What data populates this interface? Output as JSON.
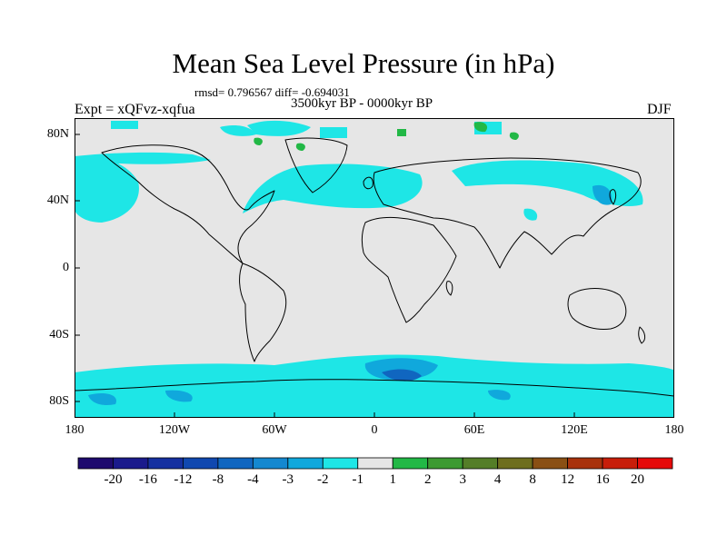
{
  "title": "Mean Sea Level Pressure (in hPa)",
  "stats": "rmsd= 0.796567 diff= -0.694031",
  "period": "3500kyr BP - 0000kyr BP",
  "experiment": "Expt = xQFvz-xqfua",
  "season": "DJF",
  "lat_labels": [
    "80N",
    "40N",
    "0",
    "40S",
    "80S"
  ],
  "lon_labels": [
    "180",
    "120W",
    "60W",
    "0",
    "60E",
    "120E",
    "180"
  ],
  "colorbar": {
    "labels": [
      "-20",
      "-16",
      "-12",
      "-8",
      "-4",
      "-3",
      "-2",
      "-1",
      "1",
      "2",
      "3",
      "4",
      "8",
      "12",
      "16",
      "20"
    ],
    "colors": [
      "#1e0a6e",
      "#1a1a8c",
      "#1530a0",
      "#1048b0",
      "#1066c0",
      "#1488d0",
      "#10a8dc",
      "#1ee6e6",
      "#e6e6e6",
      "#22b846",
      "#3c9a32",
      "#547e28",
      "#6e6e1e",
      "#8a5014",
      "#a8320c",
      "#c81e0a",
      "#e60a0a"
    ]
  },
  "colors": {
    "background": "#e6e6e6",
    "negative_light": "#1ee6e6",
    "negative_mid": "#10a8dc",
    "negative_dark": "#1066c0",
    "positive_light": "#22b846",
    "coastline": "#000000"
  }
}
